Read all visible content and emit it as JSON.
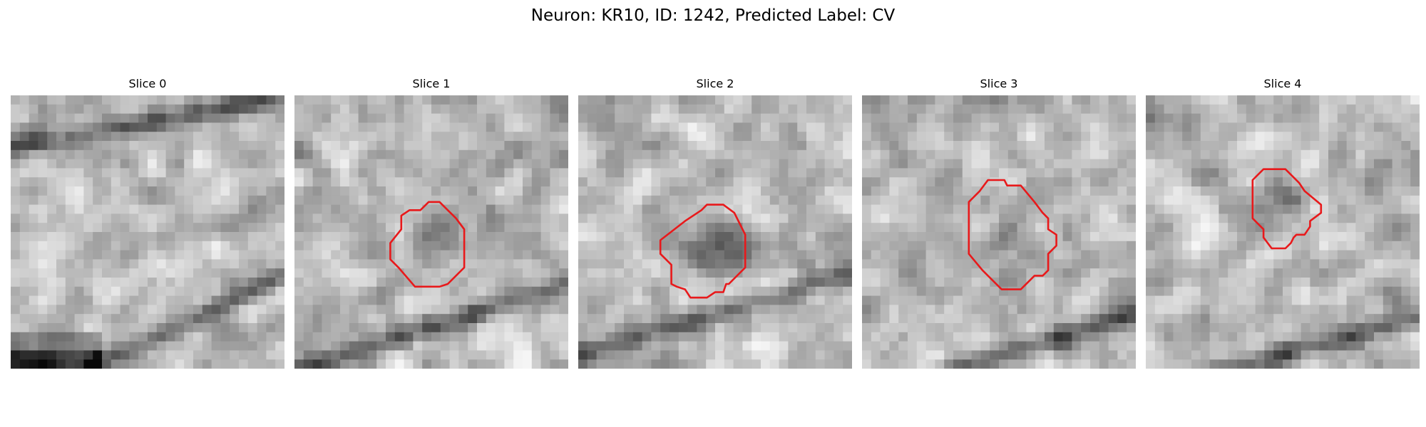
{
  "figure": {
    "title": "Neuron: KR10, ID: 1242, Predicted Label: CV",
    "outline_color": "#e8191b"
  },
  "slices": [
    {
      "label": "Slice 0",
      "has_outline": false,
      "seed": 11,
      "dark_bands": [
        [
          0.1,
          0.3,
          0.18
        ],
        [
          0.9,
          0.8,
          0.3
        ]
      ],
      "outline": []
    },
    {
      "label": "Slice 1",
      "has_outline": true,
      "seed": 23,
      "dark_bands": [
        [
          0.85,
          0.55,
          0.3
        ]
      ],
      "outline": [
        [
          0.39,
          0.44
        ],
        [
          0.42,
          0.42
        ],
        [
          0.46,
          0.42
        ],
        [
          0.49,
          0.39
        ],
        [
          0.53,
          0.39
        ],
        [
          0.56,
          0.42
        ],
        [
          0.59,
          0.45
        ],
        [
          0.62,
          0.49
        ],
        [
          0.62,
          0.63
        ],
        [
          0.56,
          0.69
        ],
        [
          0.53,
          0.7
        ],
        [
          0.44,
          0.7
        ],
        [
          0.38,
          0.63
        ],
        [
          0.35,
          0.6
        ],
        [
          0.35,
          0.54
        ],
        [
          0.39,
          0.49
        ]
      ],
      "darkspot": [
        0.51,
        0.52,
        0.13
      ]
    },
    {
      "label": "Slice 2",
      "has_outline": true,
      "seed": 37,
      "dark_bands": [
        [
          0.8,
          0.5,
          0.28
        ]
      ],
      "outline": [
        [
          0.39,
          0.46
        ],
        [
          0.45,
          0.42
        ],
        [
          0.47,
          0.4
        ],
        [
          0.53,
          0.4
        ],
        [
          0.57,
          0.43
        ],
        [
          0.59,
          0.47
        ],
        [
          0.61,
          0.51
        ],
        [
          0.61,
          0.63
        ],
        [
          0.55,
          0.69
        ],
        [
          0.54,
          0.69
        ],
        [
          0.53,
          0.72
        ],
        [
          0.5,
          0.72
        ],
        [
          0.47,
          0.74
        ],
        [
          0.41,
          0.74
        ],
        [
          0.39,
          0.71
        ],
        [
          0.36,
          0.7
        ],
        [
          0.34,
          0.69
        ],
        [
          0.34,
          0.62
        ],
        [
          0.3,
          0.58
        ],
        [
          0.3,
          0.53
        ]
      ],
      "darkspot": [
        0.52,
        0.54,
        0.15
      ]
    },
    {
      "label": "Slice 3",
      "has_outline": true,
      "seed": 53,
      "dark_bands": [
        [
          0.95,
          0.5,
          0.2
        ]
      ],
      "outline": [
        [
          0.39,
          0.39
        ],
        [
          0.43,
          0.35
        ],
        [
          0.46,
          0.31
        ],
        [
          0.52,
          0.31
        ],
        [
          0.53,
          0.33
        ],
        [
          0.58,
          0.33
        ],
        [
          0.63,
          0.39
        ],
        [
          0.66,
          0.43
        ],
        [
          0.68,
          0.45
        ],
        [
          0.68,
          0.49
        ],
        [
          0.71,
          0.51
        ],
        [
          0.71,
          0.55
        ],
        [
          0.68,
          0.58
        ],
        [
          0.68,
          0.64
        ],
        [
          0.66,
          0.66
        ],
        [
          0.63,
          0.66
        ],
        [
          0.58,
          0.71
        ],
        [
          0.51,
          0.71
        ],
        [
          0.44,
          0.64
        ],
        [
          0.39,
          0.58
        ]
      ],
      "darkspot": [
        0.55,
        0.48,
        0.1
      ]
    },
    {
      "label": "Slice 4",
      "has_outline": true,
      "seed": 71,
      "dark_bands": [
        [
          0.95,
          0.45,
          0.22
        ]
      ],
      "outline": [
        [
          0.39,
          0.31
        ],
        [
          0.43,
          0.27
        ],
        [
          0.51,
          0.27
        ],
        [
          0.56,
          0.32
        ],
        [
          0.58,
          0.35
        ],
        [
          0.64,
          0.4
        ],
        [
          0.64,
          0.43
        ],
        [
          0.6,
          0.46
        ],
        [
          0.6,
          0.48
        ],
        [
          0.58,
          0.51
        ],
        [
          0.55,
          0.51
        ],
        [
          0.54,
          0.52
        ],
        [
          0.53,
          0.54
        ],
        [
          0.51,
          0.56
        ],
        [
          0.46,
          0.56
        ],
        [
          0.43,
          0.52
        ],
        [
          0.43,
          0.49
        ],
        [
          0.39,
          0.45
        ]
      ],
      "darkspot": [
        0.5,
        0.4,
        0.1
      ]
    }
  ]
}
